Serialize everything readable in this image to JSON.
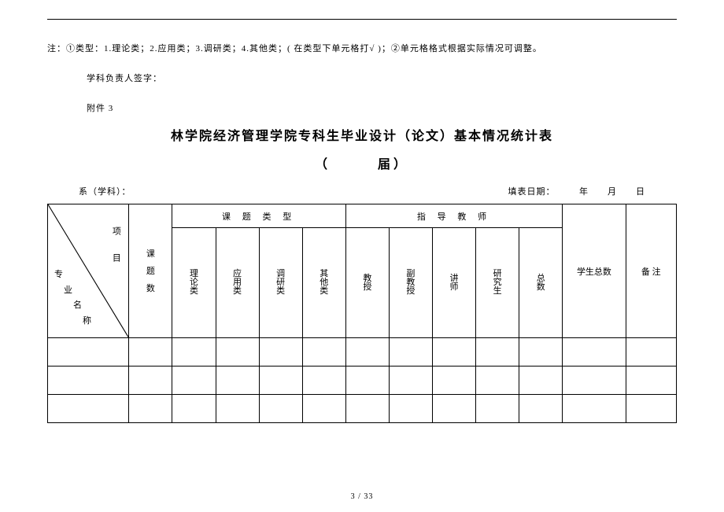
{
  "note": "注：①类型：1.理论类；2.应用类；3.调研类；4.其他类；( 在类型下单元格打√ )；②单元格格式根据实际情况可调整。",
  "signature_label": "学科负责人签字：",
  "attachment_label": "附件 3",
  "title": "林学院经济管理学院专科生毕业设计（论文）基本情况统计表",
  "subtitle": "（　　　届）",
  "meta_left": "系（学科）：",
  "meta_right": "填表日期：　　　年　　月　　日",
  "diag": {
    "top": "项 目",
    "bot": [
      "专",
      "业",
      "名",
      "称"
    ]
  },
  "col_count": "课题数",
  "group_type": "课 题 类 型",
  "group_teacher": "指 导 教 师",
  "col_student_total": "学生总数",
  "col_remark": "备 注",
  "type_cols": [
    "理 论 类",
    "应 用 类",
    "调 研 类",
    "其 他 类"
  ],
  "teacher_cols": [
    "教 授",
    "副 教 授",
    "讲 师",
    "研 究 生",
    "总 数"
  ],
  "footer": "3  / 33",
  "colors": {
    "text": "#000000",
    "bg": "#ffffff",
    "rule": "#000000"
  },
  "col_widths": {
    "diag": 90,
    "count": 48,
    "type": 48,
    "teacher": 48,
    "student": 70,
    "remark": 56
  }
}
